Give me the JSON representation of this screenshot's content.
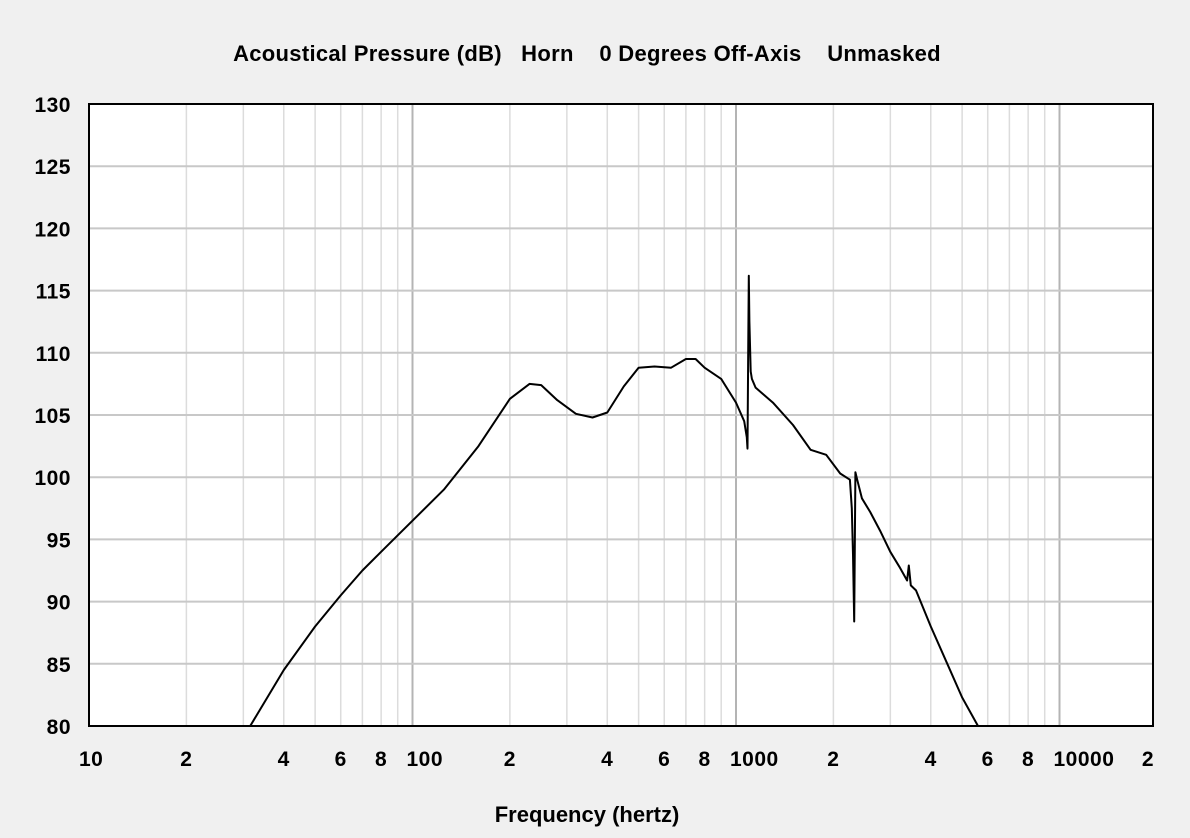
{
  "chart_data": {
    "type": "line",
    "title": "Acoustical Pressure (dB)   Horn    0 Degrees Off-Axis    Unmasked",
    "xlabel": "Frequency (hertz)",
    "ylabel": "",
    "x_scale": "log",
    "xlim": [
      10,
      20000
    ],
    "ylim": [
      80,
      130
    ],
    "grid": true,
    "x_tick_labels": [
      {
        "value": 10,
        "label": "10"
      },
      {
        "value": 20,
        "label": "2"
      },
      {
        "value": 40,
        "label": "4"
      },
      {
        "value": 60,
        "label": "6"
      },
      {
        "value": 80,
        "label": "8"
      },
      {
        "value": 100,
        "label": "100"
      },
      {
        "value": 200,
        "label": "2"
      },
      {
        "value": 400,
        "label": "4"
      },
      {
        "value": 600,
        "label": "6"
      },
      {
        "value": 800,
        "label": "8"
      },
      {
        "value": 1000,
        "label": "1000"
      },
      {
        "value": 2000,
        "label": "2"
      },
      {
        "value": 4000,
        "label": "4"
      },
      {
        "value": 6000,
        "label": "6"
      },
      {
        "value": 8000,
        "label": "8"
      },
      {
        "value": 10000,
        "label": "10000"
      },
      {
        "value": 20000,
        "label": "2"
      }
    ],
    "y_ticks": [
      80,
      85,
      90,
      95,
      100,
      105,
      110,
      115,
      120,
      125,
      130
    ],
    "series": [
      {
        "x": [
          31.5,
          40,
          50,
          60,
          70,
          80,
          100,
          125,
          160,
          200,
          230,
          250,
          280,
          320,
          360,
          400,
          450,
          500,
          560,
          630,
          700,
          750,
          800,
          900,
          1000,
          1060,
          1080,
          1085,
          1090,
          1095,
          1100,
          1110,
          1120,
          1150,
          1300,
          1500,
          1700,
          1900,
          2100,
          2250,
          2280,
          2300,
          2320,
          2340,
          2370,
          2450,
          2600,
          2800,
          3000,
          3200,
          3380,
          3420,
          3470,
          3600,
          4000,
          4500,
          5000,
          5600
        ],
        "y": [
          80,
          84.5,
          88,
          90.5,
          92.5,
          94,
          96.5,
          99,
          102.5,
          106.3,
          107.5,
          107.4,
          106.2,
          105.1,
          104.8,
          105.2,
          107.3,
          108.8,
          108.9,
          108.8,
          109.5,
          109.5,
          108.8,
          107.9,
          106,
          104.5,
          103.2,
          102.3,
          109,
          116.2,
          112.5,
          108.5,
          107.9,
          107.2,
          106,
          104.2,
          102.2,
          101.8,
          100.3,
          99.8,
          97.5,
          93.8,
          88.4,
          100.4,
          99.8,
          98.3,
          97.2,
          95.6,
          94,
          92.8,
          91.7,
          92.9,
          91.3,
          90.9,
          88,
          85,
          82.3,
          80
        ]
      }
    ]
  }
}
